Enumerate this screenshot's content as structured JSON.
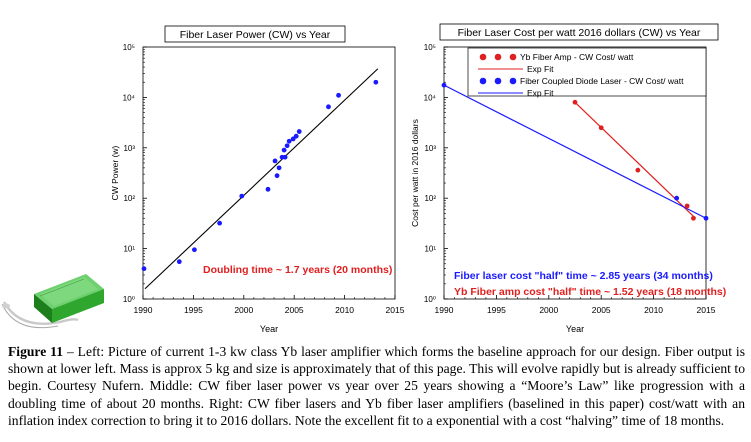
{
  "chart_data": [
    {
      "type": "scatter",
      "title": "Fiber Laser Power (CW) vs Year",
      "xlabel": "Year",
      "ylabel": "CW Power (w)",
      "xlim": [
        1990,
        2015
      ],
      "ylim": [
        1,
        100000
      ],
      "yscale": "log",
      "xticks": [
        "1990",
        "1995",
        "2000",
        "2005",
        "2010",
        "2015"
      ],
      "yticks": [
        "10⁰",
        "10¹",
        "10²",
        "10³",
        "10⁴",
        "10⁵"
      ],
      "grid": false,
      "series": [
        {
          "x": [
            1990.1,
            1993.6,
            1995.1,
            1997.6,
            1999.8,
            2002.4,
            2003.1,
            2003.3,
            2003.5,
            2003.8,
            2004.0,
            2004.1,
            2004.3,
            2004.5,
            2004.9,
            2005.2,
            2005.5,
            2008.4,
            2009.4,
            2013.1
          ],
          "y": [
            4,
            5.5,
            9.5,
            32,
            110,
            150,
            550,
            280,
            400,
            650,
            900,
            650,
            1100,
            1350,
            1500,
            1700,
            2100,
            6500,
            11000,
            20000
          ],
          "color": "#1a1aff"
        }
      ],
      "fit": {
        "x": [
          1990.2,
          2013.3
        ],
        "y": [
          1.6,
          37000
        ],
        "color": "#000000"
      },
      "annotation": {
        "text": "Doubling time ~ 1.7 years (20 months)",
        "color": "#e02020"
      }
    },
    {
      "type": "scatter",
      "title": "Fiber Laser Cost per watt 2016 dollars (CW) vs Year",
      "xlabel": "Year",
      "ylabel": "Cost per watt in 2016 dollars",
      "xlim": [
        1990,
        2015
      ],
      "ylim": [
        1,
        100000
      ],
      "yscale": "log",
      "xticks": [
        "1990",
        "1995",
        "2000",
        "2005",
        "2010",
        "2015"
      ],
      "yticks": [
        "10⁰",
        "10¹",
        "10²",
        "10³",
        "10⁴",
        "10⁵"
      ],
      "grid": false,
      "legend_position": "top-right",
      "series": [
        {
          "name": "Yb Fiber Amp - CW Cost/ watt",
          "x": [
            2002.5,
            2005.0,
            2008.5,
            2013.2,
            2013.8
          ],
          "y": [
            8000,
            2500,
            360,
            70,
            40
          ],
          "color": "#e02020",
          "fit_name": "Exp Fit",
          "fit": {
            "x": [
              2002.5,
              2014.0
            ],
            "y": [
              8000,
              40
            ]
          }
        },
        {
          "name": "Fiber Coupled Diode Laser - CW Cost/ watt",
          "x": [
            1990.0,
            2012.2,
            2015.0
          ],
          "y": [
            17500,
            100,
            40
          ],
          "color": "#1a1aff",
          "fit_name": "Exp Fit",
          "fit": {
            "x": [
              1990.0,
              2015.0
            ],
            "y": [
              17500,
              40
            ]
          }
        }
      ],
      "annotations": [
        {
          "text": "Fiber laser cost \"half\" time ~ 2.85 years (34 months)",
          "color": "#1a1aff"
        },
        {
          "text": "Yb Fiber amp cost \"half\" time ~ 1.52 years (18 months)",
          "color": "#e02020"
        }
      ]
    }
  ],
  "caption": {
    "label": "Figure 11",
    "text": " – Left: Picture of current 1-3 kw class Yb laser amplifier which forms the baseline approach for our design. Fiber output is shown at lower left. Mass is approx 5 kg and size is approximately that of this page. This will evolve rapidly but is already sufficient to begin. Courtesy Nufern. Middle: CW fiber laser power vs year over 25 years showing a “Moore’s Law” like progression with a doubling time of about 20 months. Right: CW fiber lasers and Yb fiber laser amplifiers (baselined in this paper) cost/watt with an inflation index correction to bring it to 2016 dollars. Note the excellent fit to a exponential with a cost “halving” time of 18 months."
  }
}
